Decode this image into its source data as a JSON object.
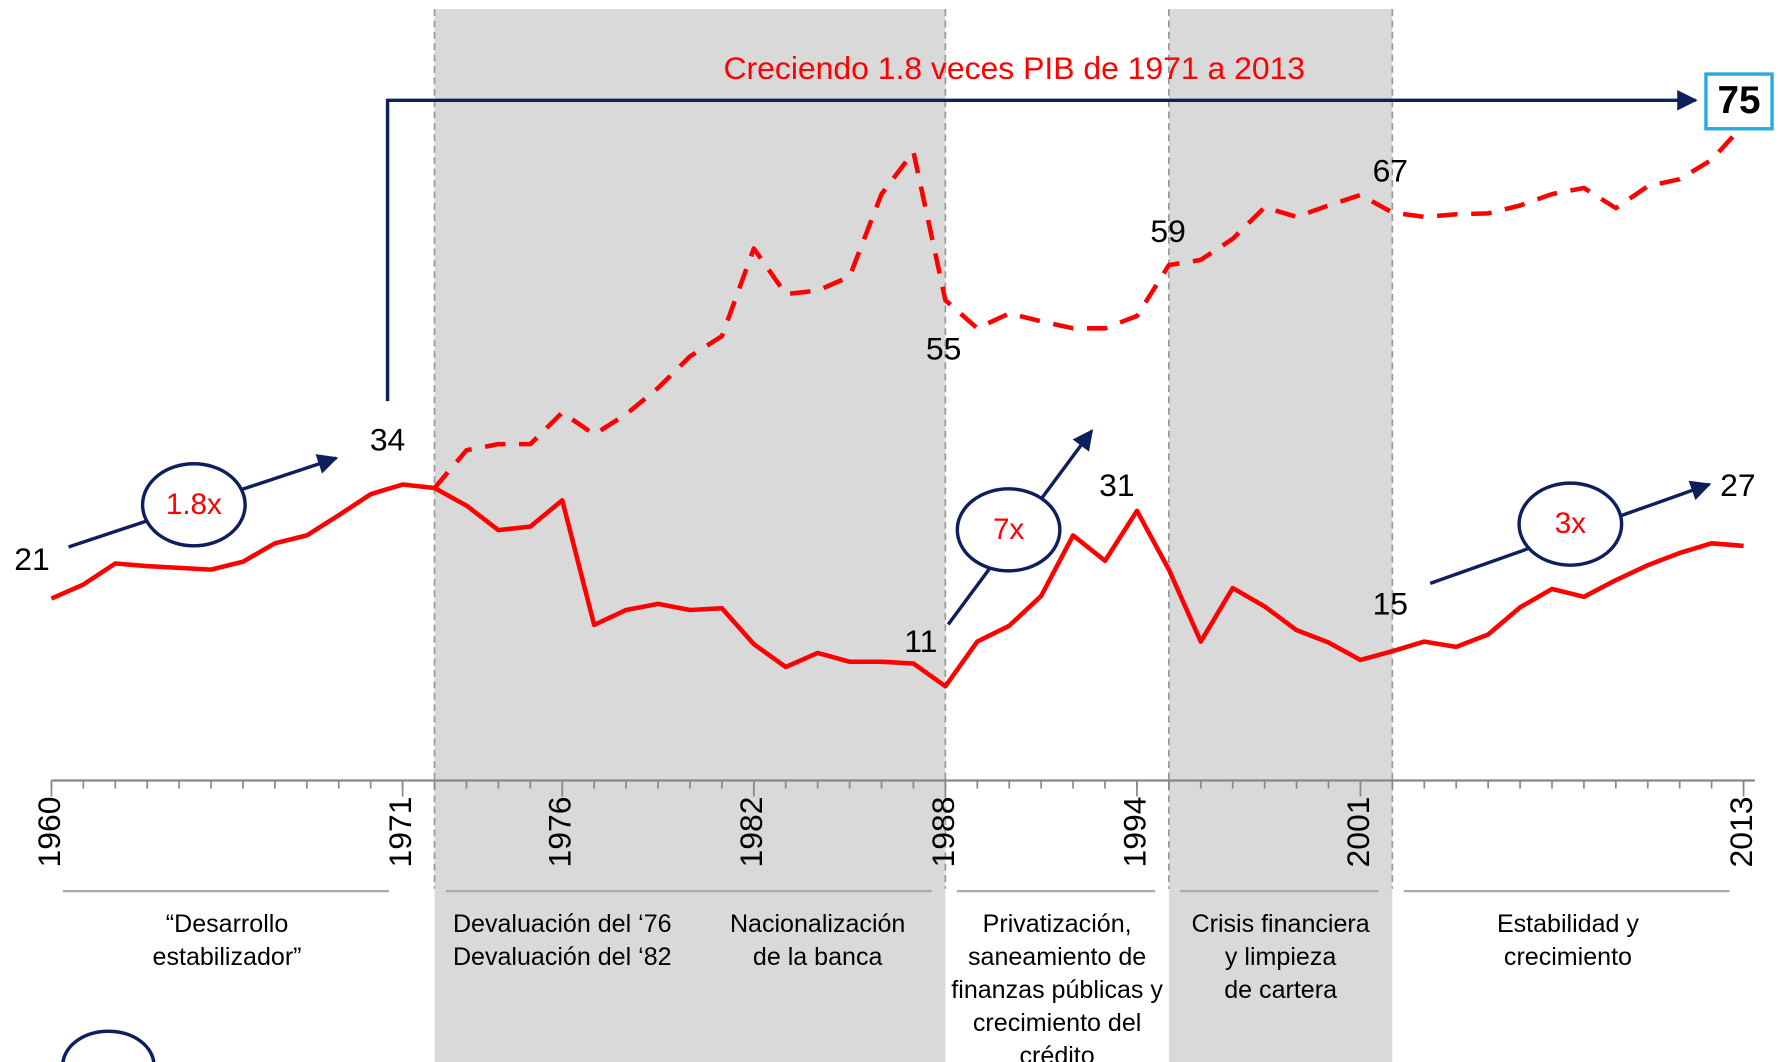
{
  "chart_data": {
    "type": "line",
    "x": [
      1960,
      1961,
      1962,
      1963,
      1964,
      1965,
      1966,
      1967,
      1968,
      1969,
      1970,
      1971,
      1972,
      1973,
      1974,
      1975,
      1976,
      1977,
      1978,
      1979,
      1980,
      1981,
      1982,
      1983,
      1984,
      1985,
      1986,
      1987,
      1988,
      1989,
      1990,
      1991,
      1992,
      1993,
      1994,
      1995,
      1996,
      1997,
      1998,
      1999,
      2000,
      2001,
      2002,
      2003,
      2004,
      2005,
      2006,
      2007,
      2008,
      2009,
      2010,
      2011,
      2012,
      2013
    ],
    "series": [
      {
        "color": "#ff0000",
        "style": "solid",
        "values": [
          21,
          22.6,
          25,
          24.7,
          24.5,
          24.3,
          25.2,
          27.3,
          28.2,
          30.5,
          32.9,
          34,
          33.6,
          31.6,
          28.8,
          29.2,
          32.2,
          18,
          19.7,
          20.4,
          19.7,
          19.9,
          15.8,
          13.2,
          14.8,
          13.8,
          13.8,
          13.6,
          11,
          16.1,
          17.9,
          21.3,
          28.2,
          25.3,
          31,
          24.3,
          16.1,
          22.2,
          20.1,
          17.4,
          16,
          14,
          15,
          16.1,
          15.5,
          16.9,
          20,
          22.1,
          21.2,
          23.1,
          24.8,
          26.2,
          27.3,
          27
        ]
      },
      {
        "color": "#ff0000",
        "style": "dashed",
        "values": [
          null,
          null,
          null,
          null,
          null,
          null,
          null,
          null,
          null,
          null,
          null,
          null,
          33.6,
          37.9,
          38.6,
          38.6,
          42.2,
          39.7,
          42,
          45,
          48.6,
          50.9,
          60.9,
          55.7,
          56.1,
          57.7,
          67.1,
          71.9,
          55,
          51.8,
          53.5,
          52.6,
          51.8,
          51.8,
          53.2,
          59,
          59.6,
          62,
          65.6,
          64.5,
          65.8,
          67,
          65,
          64.5,
          64.8,
          64.9,
          65.8,
          67.1,
          67.8,
          65.5,
          68,
          68.8,
          71,
          75
        ]
      }
    ],
    "xlim": [
      1960,
      2013
    ],
    "xticks": [
      1960,
      1971,
      1976,
      1982,
      1988,
      1994,
      2001,
      2013
    ],
    "ylim": [
      0,
      80
    ],
    "annotations": [
      "Creciendo 1.8 veces PIB de 1971 a 2013",
      "1.8x",
      "7x",
      "3x"
    ],
    "periods": [
      {
        "start": 1960,
        "end": 1971,
        "shaded": false,
        "texts": [
          [
            "“Desarrollo",
            "estabilizador”"
          ]
        ]
      },
      {
        "start": 1972,
        "end": 1988,
        "shaded": true,
        "texts": [
          [
            "Devaluación del ‘76",
            "Devaluación del ‘82"
          ],
          [
            "Nacionalización",
            "de la banca"
          ]
        ]
      },
      {
        "start": 1988,
        "end": 1995,
        "shaded": false,
        "texts": [
          [
            "Privatización,",
            "saneamiento de",
            "finanzas públicas y",
            "crecimiento del",
            "crédito"
          ]
        ]
      },
      {
        "start": 1995,
        "end": 2002,
        "shaded": true,
        "texts": [
          [
            "Crisis financiera",
            "y limpieza",
            "de cartera"
          ]
        ]
      },
      {
        "start": 2002,
        "end": 2013,
        "shaded": false,
        "texts": [
          [
            "Estabilidad y",
            "crecimiento"
          ]
        ]
      }
    ]
  }
}
